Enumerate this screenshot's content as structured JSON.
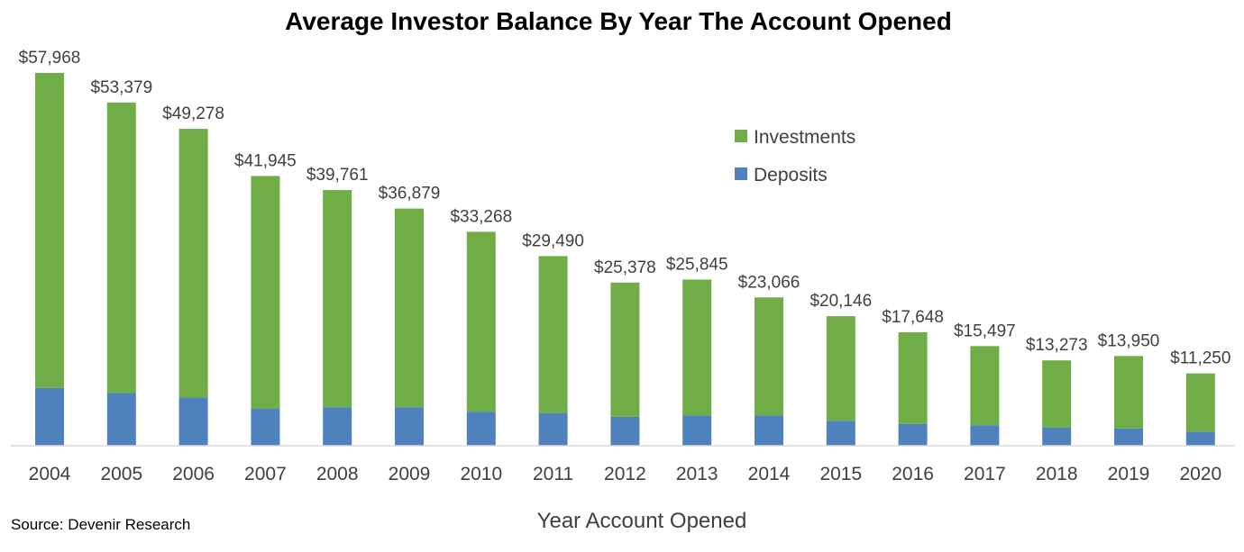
{
  "chart_data": {
    "type": "bar",
    "stacked": true,
    "title": "Average Investor Balance By Year The Account Opened",
    "xlabel": "Year Account Opened",
    "ylabel": "",
    "categories": [
      "2004",
      "2005",
      "2006",
      "2007",
      "2008",
      "2009",
      "2010",
      "2011",
      "2012",
      "2013",
      "2014",
      "2015",
      "2016",
      "2017",
      "2018",
      "2019",
      "2020"
    ],
    "totals": [
      57968,
      53379,
      49278,
      41945,
      39761,
      36879,
      33268,
      29490,
      25378,
      25845,
      23066,
      20146,
      17648,
      15497,
      13273,
      13950,
      11250
    ],
    "total_labels": [
      "$57,968",
      "$53,379",
      "$49,278",
      "$41,945",
      "$39,761",
      "$36,879",
      "$33,268",
      "$29,490",
      "$25,378",
      "$25,845",
      "$23,066",
      "$20,146",
      "$17,648",
      "$15,497",
      "$13,273",
      "$13,950",
      "$11,250"
    ],
    "series": [
      {
        "name": "Deposits",
        "color": "#4f81bd",
        "values": [
          9000,
          8200,
          7500,
          5800,
          6000,
          6000,
          5300,
          5100,
          4500,
          4700,
          4700,
          3900,
          3400,
          3200,
          2800,
          2700,
          2200
        ]
      },
      {
        "name": "Investments",
        "color": "#70ad47",
        "values": [
          48968,
          45179,
          41778,
          36145,
          33761,
          30879,
          27968,
          24390,
          20878,
          21145,
          18366,
          16246,
          14248,
          12297,
          10473,
          11250,
          9050
        ]
      }
    ],
    "ylim": [
      0,
      60000
    ],
    "legend_position": "upper-right",
    "legend_order": [
      "Investments",
      "Deposits"
    ],
    "grid": false
  },
  "source": "Source: Devenir Research"
}
